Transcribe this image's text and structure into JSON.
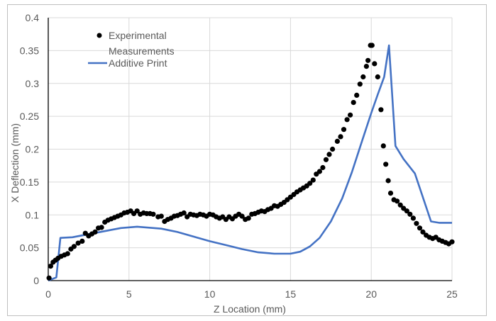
{
  "chart_data": {
    "type": "scatter",
    "title": "",
    "xlabel": "Z Location (mm)",
    "ylabel": "X Deflection (mm)",
    "xlim": [
      0,
      25
    ],
    "ylim": [
      0,
      0.4
    ],
    "x_ticks": [
      "0",
      "5",
      "10",
      "15",
      "20",
      "25"
    ],
    "y_ticks": [
      "0",
      "0.05",
      "0.1",
      "0.15",
      "0.2",
      "0.25",
      "0.3",
      "0.35",
      "0.4"
    ],
    "grid": true,
    "legend_position": "upper-left-inside",
    "series": [
      {
        "name": "Experimental Measurements",
        "kind": "scatter",
        "color": "#000000",
        "points": [
          [
            0.05,
            0.004
          ],
          [
            0.15,
            0.022
          ],
          [
            0.3,
            0.028
          ],
          [
            0.45,
            0.031
          ],
          [
            0.6,
            0.034
          ],
          [
            0.8,
            0.037
          ],
          [
            1.0,
            0.039
          ],
          [
            1.2,
            0.041
          ],
          [
            1.4,
            0.048
          ],
          [
            1.6,
            0.052
          ],
          [
            1.85,
            0.057
          ],
          [
            2.1,
            0.06
          ],
          [
            2.3,
            0.072
          ],
          [
            2.5,
            0.068
          ],
          [
            2.7,
            0.071
          ],
          [
            2.9,
            0.074
          ],
          [
            3.1,
            0.08
          ],
          [
            3.3,
            0.081
          ],
          [
            3.5,
            0.089
          ],
          [
            3.7,
            0.092
          ],
          [
            3.9,
            0.094
          ],
          [
            4.1,
            0.096
          ],
          [
            4.3,
            0.098
          ],
          [
            4.5,
            0.1
          ],
          [
            4.7,
            0.103
          ],
          [
            4.9,
            0.104
          ],
          [
            5.1,
            0.106
          ],
          [
            5.3,
            0.102
          ],
          [
            5.5,
            0.106
          ],
          [
            5.7,
            0.101
          ],
          [
            5.9,
            0.103
          ],
          [
            6.1,
            0.102
          ],
          [
            6.3,
            0.102
          ],
          [
            6.5,
            0.101
          ],
          [
            6.8,
            0.097
          ],
          [
            7.0,
            0.098
          ],
          [
            7.2,
            0.09
          ],
          [
            7.4,
            0.093
          ],
          [
            7.6,
            0.095
          ],
          [
            7.8,
            0.098
          ],
          [
            8.0,
            0.099
          ],
          [
            8.2,
            0.101
          ],
          [
            8.4,
            0.103
          ],
          [
            8.6,
            0.097
          ],
          [
            8.8,
            0.101
          ],
          [
            9.0,
            0.1
          ],
          [
            9.2,
            0.099
          ],
          [
            9.4,
            0.101
          ],
          [
            9.6,
            0.1
          ],
          [
            9.8,
            0.098
          ],
          [
            10.0,
            0.101
          ],
          [
            10.2,
            0.1
          ],
          [
            10.4,
            0.097
          ],
          [
            10.6,
            0.095
          ],
          [
            10.8,
            0.097
          ],
          [
            11.0,
            0.093
          ],
          [
            11.2,
            0.097
          ],
          [
            11.4,
            0.094
          ],
          [
            11.6,
            0.098
          ],
          [
            11.8,
            0.101
          ],
          [
            12.0,
            0.098
          ],
          [
            12.2,
            0.093
          ],
          [
            12.4,
            0.095
          ],
          [
            12.6,
            0.101
          ],
          [
            12.8,
            0.102
          ],
          [
            13.0,
            0.104
          ],
          [
            13.2,
            0.106
          ],
          [
            13.4,
            0.105
          ],
          [
            13.6,
            0.108
          ],
          [
            13.8,
            0.11
          ],
          [
            14.0,
            0.114
          ],
          [
            14.2,
            0.113
          ],
          [
            14.4,
            0.116
          ],
          [
            14.6,
            0.119
          ],
          [
            14.8,
            0.123
          ],
          [
            15.0,
            0.127
          ],
          [
            15.2,
            0.131
          ],
          [
            15.4,
            0.135
          ],
          [
            15.6,
            0.138
          ],
          [
            15.8,
            0.141
          ],
          [
            16.0,
            0.144
          ],
          [
            16.2,
            0.148
          ],
          [
            16.4,
            0.153
          ],
          [
            16.6,
            0.162
          ],
          [
            16.8,
            0.166
          ],
          [
            17.0,
            0.172
          ],
          [
            17.2,
            0.184
          ],
          [
            17.4,
            0.192
          ],
          [
            17.6,
            0.2
          ],
          [
            17.9,
            0.212
          ],
          [
            18.1,
            0.219
          ],
          [
            18.3,
            0.23
          ],
          [
            18.5,
            0.245
          ],
          [
            18.7,
            0.252
          ],
          [
            18.9,
            0.271
          ],
          [
            19.1,
            0.282
          ],
          [
            19.3,
            0.299
          ],
          [
            19.5,
            0.31
          ],
          [
            19.7,
            0.326
          ],
          [
            19.8,
            0.335
          ],
          [
            19.95,
            0.358
          ],
          [
            20.05,
            0.358
          ],
          [
            20.2,
            0.33
          ],
          [
            20.4,
            0.31
          ],
          [
            20.6,
            0.26
          ],
          [
            20.75,
            0.205
          ],
          [
            20.9,
            0.177
          ],
          [
            21.05,
            0.152
          ],
          [
            21.2,
            0.133
          ],
          [
            21.4,
            0.123
          ],
          [
            21.6,
            0.121
          ],
          [
            21.8,
            0.115
          ],
          [
            22.0,
            0.11
          ],
          [
            22.2,
            0.106
          ],
          [
            22.4,
            0.101
          ],
          [
            22.6,
            0.095
          ],
          [
            22.8,
            0.087
          ],
          [
            23.0,
            0.08
          ],
          [
            23.2,
            0.074
          ],
          [
            23.4,
            0.069
          ],
          [
            23.6,
            0.066
          ],
          [
            23.8,
            0.064
          ],
          [
            24.0,
            0.066
          ],
          [
            24.2,
            0.062
          ],
          [
            24.4,
            0.06
          ],
          [
            24.6,
            0.058
          ],
          [
            24.8,
            0.056
          ],
          [
            25.0,
            0.059
          ]
        ]
      },
      {
        "name": "Additive Print",
        "kind": "line",
        "color": "#4472c4",
        "points": [
          [
            0,
            0
          ],
          [
            0.5,
            0.005
          ],
          [
            0.75,
            0.065
          ],
          [
            1.5,
            0.066
          ],
          [
            3,
            0.073
          ],
          [
            4.5,
            0.08
          ],
          [
            5.5,
            0.082
          ],
          [
            7,
            0.079
          ],
          [
            8,
            0.074
          ],
          [
            9,
            0.067
          ],
          [
            10,
            0.06
          ],
          [
            11,
            0.054
          ],
          [
            12,
            0.048
          ],
          [
            13,
            0.043
          ],
          [
            14,
            0.041
          ],
          [
            15,
            0.041
          ],
          [
            15.6,
            0.044
          ],
          [
            16.2,
            0.052
          ],
          [
            16.8,
            0.065
          ],
          [
            17.5,
            0.09
          ],
          [
            18.2,
            0.125
          ],
          [
            18.8,
            0.165
          ],
          [
            19.4,
            0.21
          ],
          [
            20.0,
            0.255
          ],
          [
            20.4,
            0.283
          ],
          [
            20.8,
            0.31
          ],
          [
            21.1,
            0.358
          ],
          [
            21.5,
            0.205
          ],
          [
            22.0,
            0.185
          ],
          [
            22.7,
            0.163
          ],
          [
            23.7,
            0.09
          ],
          [
            24.2,
            0.088
          ],
          [
            25.0,
            0.088
          ]
        ]
      }
    ]
  },
  "legend": {
    "items": [
      {
        "label_line1": "Experimental",
        "label_line2": "Measurements"
      },
      {
        "label_line1": "Additive Print"
      }
    ]
  }
}
